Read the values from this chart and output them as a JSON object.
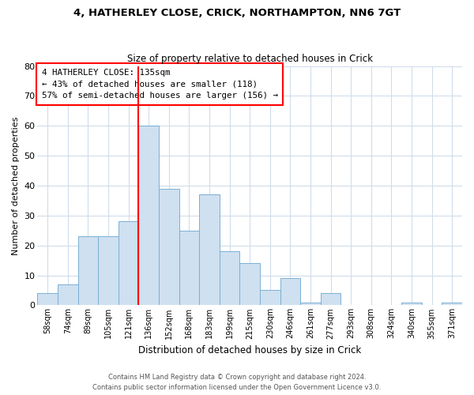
{
  "title": "4, HATHERLEY CLOSE, CRICK, NORTHAMPTON, NN6 7GT",
  "subtitle": "Size of property relative to detached houses in Crick",
  "xlabel": "Distribution of detached houses by size in Crick",
  "ylabel": "Number of detached properties",
  "bar_color": "#cfe0f0",
  "bar_edgecolor": "#7ab0d4",
  "bin_labels": [
    "58sqm",
    "74sqm",
    "89sqm",
    "105sqm",
    "121sqm",
    "136sqm",
    "152sqm",
    "168sqm",
    "183sqm",
    "199sqm",
    "215sqm",
    "230sqm",
    "246sqm",
    "261sqm",
    "277sqm",
    "293sqm",
    "308sqm",
    "324sqm",
    "340sqm",
    "355sqm",
    "371sqm"
  ],
  "bar_heights": [
    4,
    7,
    23,
    23,
    28,
    60,
    39,
    25,
    37,
    18,
    14,
    5,
    9,
    1,
    4,
    0,
    0,
    0,
    1,
    0,
    1
  ],
  "ylim": [
    0,
    80
  ],
  "yticks": [
    0,
    10,
    20,
    30,
    40,
    50,
    60,
    70,
    80
  ],
  "red_line_x": 5,
  "annotation_title": "4 HATHERLEY CLOSE: 135sqm",
  "annotation_line1": "← 43% of detached houses are smaller (118)",
  "annotation_line2": "57% of semi-detached houses are larger (156) →",
  "footer1": "Contains HM Land Registry data © Crown copyright and database right 2024.",
  "footer2": "Contains public sector information licensed under the Open Government Licence v3.0.",
  "background_color": "#ffffff",
  "grid_color": "#d0dcea"
}
